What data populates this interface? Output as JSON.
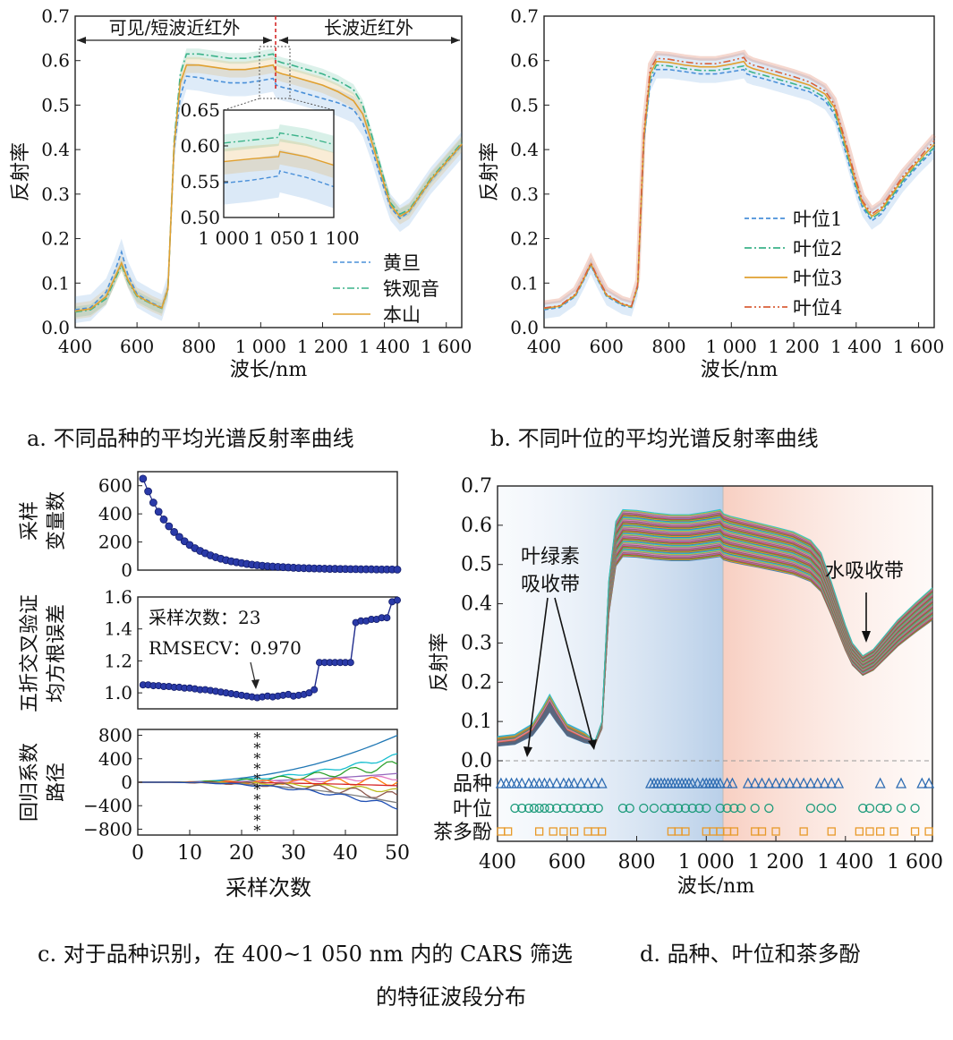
{
  "captions": {
    "a": "a. 不同品种的平均光谱反射率曲线",
    "b": "b. 不同叶位的平均光谱反射率曲线",
    "c_line1": "c. 对于品种识别，在 400~1 050 nm 内的 CARS 筛选",
    "d_line1": "d. 品种、叶位和茶多酚",
    "d_line2": "的特征波段分布"
  },
  "colors": {
    "huangdan": "#4a90d9",
    "tieguanyin": "#3cb38a",
    "benshan": "#e0a030",
    "yewei4": "#d9603a",
    "cars_points": "#1f2b8c",
    "selected_marker": "#3c4fc9"
  },
  "chart_data": [
    {
      "id": "a",
      "type": "line",
      "xlabel": "波长/nm",
      "ylabel": "反射率",
      "xlim": [
        400,
        1650
      ],
      "ylim": [
        0.0,
        0.7
      ],
      "xticks": [
        "400",
        "600",
        "800",
        "1 000",
        "1 200",
        "1 400",
        "1 600"
      ],
      "yticks": [
        "0.0",
        "0.1",
        "0.2",
        "0.3",
        "0.4",
        "0.5",
        "0.6",
        "0.7"
      ],
      "region_labels": [
        "可见/短波近红外",
        "长波近红外"
      ],
      "divider_x": 1050,
      "legend_position": "bottom-right",
      "x": [
        400,
        450,
        500,
        530,
        550,
        570,
        600,
        650,
        680,
        700,
        720,
        740,
        760,
        800,
        850,
        900,
        950,
        1000,
        1040,
        1050,
        1070,
        1100,
        1150,
        1200,
        1250,
        1300,
        1330,
        1360,
        1400,
        1420,
        1450,
        1480,
        1500,
        1550,
        1600,
        1650
      ],
      "series": [
        {
          "name": "黄旦",
          "style": "dashed",
          "color": "#4a90d9",
          "values": [
            0.04,
            0.045,
            0.08,
            0.13,
            0.17,
            0.12,
            0.075,
            0.055,
            0.045,
            0.09,
            0.4,
            0.52,
            0.565,
            0.562,
            0.555,
            0.55,
            0.55,
            0.555,
            0.56,
            0.545,
            0.54,
            0.535,
            0.525,
            0.515,
            0.505,
            0.49,
            0.46,
            0.4,
            0.31,
            0.27,
            0.245,
            0.26,
            0.28,
            0.33,
            0.37,
            0.41
          ],
          "band": 0.03
        },
        {
          "name": "铁观音",
          "style": "dashdot",
          "color": "#3cb38a",
          "values": [
            0.035,
            0.04,
            0.065,
            0.11,
            0.14,
            0.105,
            0.07,
            0.052,
            0.043,
            0.085,
            0.42,
            0.57,
            0.615,
            0.615,
            0.61,
            0.605,
            0.605,
            0.61,
            0.615,
            0.6,
            0.595,
            0.59,
            0.58,
            0.57,
            0.555,
            0.535,
            0.5,
            0.43,
            0.33,
            0.28,
            0.255,
            0.265,
            0.285,
            0.335,
            0.375,
            0.415
          ],
          "band": 0.012
        },
        {
          "name": "本山",
          "style": "solid",
          "color": "#e0a030",
          "values": [
            0.037,
            0.042,
            0.07,
            0.115,
            0.145,
            0.108,
            0.072,
            0.053,
            0.044,
            0.087,
            0.41,
            0.55,
            0.59,
            0.59,
            0.585,
            0.58,
            0.58,
            0.585,
            0.59,
            0.575,
            0.57,
            0.565,
            0.555,
            0.545,
            0.53,
            0.51,
            0.48,
            0.415,
            0.32,
            0.275,
            0.25,
            0.262,
            0.282,
            0.332,
            0.372,
            0.412
          ],
          "band": 0.018
        }
      ],
      "inset": {
        "xlim": [
          1000,
          1100
        ],
        "ylim": [
          0.5,
          0.65
        ],
        "xticks": [
          "1 000",
          "1 050",
          "1 100"
        ],
        "yticks": [
          "0.50",
          "0.55",
          "0.60",
          "0.65"
        ],
        "x": [
          1000,
          1025,
          1050,
          1051,
          1075,
          1100
        ],
        "series": [
          {
            "name": "黄旦",
            "values": [
              0.548,
              0.552,
              0.558,
              0.565,
              0.556,
              0.543
            ]
          },
          {
            "name": "铁观音",
            "values": [
              0.604,
              0.608,
              0.612,
              0.618,
              0.612,
              0.602
            ]
          },
          {
            "name": "本山",
            "values": [
              0.578,
              0.582,
              0.585,
              0.592,
              0.585,
              0.573
            ]
          }
        ]
      }
    },
    {
      "id": "b",
      "type": "line",
      "xlabel": "波长/nm",
      "ylabel": "反射率",
      "xlim": [
        400,
        1650
      ],
      "ylim": [
        0.0,
        0.7
      ],
      "xticks": [
        "400",
        "600",
        "800",
        "1 000",
        "1 200",
        "1 400",
        "1 600"
      ],
      "yticks": [
        "0.0",
        "0.1",
        "0.2",
        "0.3",
        "0.4",
        "0.5",
        "0.6",
        "0.7"
      ],
      "legend_position": "bottom-right",
      "x": [
        400,
        450,
        500,
        530,
        550,
        570,
        600,
        650,
        680,
        700,
        720,
        740,
        760,
        800,
        850,
        900,
        950,
        1000,
        1040,
        1050,
        1070,
        1100,
        1150,
        1200,
        1250,
        1300,
        1330,
        1360,
        1400,
        1420,
        1450,
        1480,
        1500,
        1550,
        1600,
        1650
      ],
      "series": [
        {
          "name": "叶位1",
          "style": "dashed",
          "color": "#4a90d9",
          "values": [
            0.04,
            0.045,
            0.07,
            0.11,
            0.14,
            0.11,
            0.07,
            0.05,
            0.045,
            0.09,
            0.42,
            0.55,
            0.58,
            0.58,
            0.575,
            0.57,
            0.57,
            0.575,
            0.58,
            0.57,
            0.565,
            0.56,
            0.55,
            0.54,
            0.53,
            0.51,
            0.48,
            0.41,
            0.31,
            0.27,
            0.24,
            0.255,
            0.275,
            0.325,
            0.365,
            0.4
          ]
        },
        {
          "name": "叶位2",
          "style": "dashdot",
          "color": "#3cb38a",
          "values": [
            0.042,
            0.047,
            0.072,
            0.112,
            0.142,
            0.112,
            0.072,
            0.052,
            0.046,
            0.092,
            0.425,
            0.56,
            0.59,
            0.588,
            0.582,
            0.578,
            0.578,
            0.583,
            0.588,
            0.578,
            0.573,
            0.568,
            0.558,
            0.548,
            0.537,
            0.517,
            0.487,
            0.417,
            0.317,
            0.275,
            0.245,
            0.26,
            0.28,
            0.33,
            0.37,
            0.405
          ]
        },
        {
          "name": "叶位3",
          "style": "solid",
          "color": "#e0a030",
          "values": [
            0.043,
            0.048,
            0.073,
            0.113,
            0.143,
            0.113,
            0.073,
            0.053,
            0.047,
            0.093,
            0.43,
            0.57,
            0.598,
            0.596,
            0.59,
            0.586,
            0.586,
            0.592,
            0.598,
            0.588,
            0.582,
            0.576,
            0.566,
            0.556,
            0.545,
            0.525,
            0.495,
            0.425,
            0.323,
            0.28,
            0.25,
            0.265,
            0.285,
            0.335,
            0.375,
            0.412
          ]
        },
        {
          "name": "叶位4",
          "style": "dashdotdot",
          "color": "#d9603a",
          "values": [
            0.044,
            0.049,
            0.075,
            0.115,
            0.145,
            0.115,
            0.075,
            0.054,
            0.048,
            0.095,
            0.44,
            0.58,
            0.605,
            0.603,
            0.597,
            0.593,
            0.593,
            0.6,
            0.607,
            0.597,
            0.59,
            0.584,
            0.574,
            0.564,
            0.552,
            0.532,
            0.502,
            0.432,
            0.33,
            0.285,
            0.255,
            0.27,
            0.29,
            0.34,
            0.38,
            0.42
          ]
        }
      ]
    },
    {
      "id": "c1",
      "type": "scatter",
      "ylabel": "采样\n变量数",
      "xlim": [
        0,
        50
      ],
      "ylim": [
        0,
        700
      ],
      "yticks": [
        "0",
        "200",
        "400",
        "600"
      ],
      "x": [
        1,
        2,
        3,
        4,
        5,
        6,
        7,
        8,
        9,
        10,
        11,
        12,
        13,
        14,
        15,
        16,
        17,
        18,
        19,
        20,
        21,
        22,
        23,
        24,
        25,
        26,
        27,
        28,
        29,
        30,
        31,
        32,
        33,
        34,
        35,
        36,
        37,
        38,
        39,
        40,
        41,
        42,
        43,
        44,
        45,
        46,
        47,
        48,
        49,
        50
      ],
      "values": [
        650,
        560,
        480,
        415,
        360,
        312,
        271,
        236,
        205,
        179,
        156,
        137,
        120,
        105,
        92,
        81,
        71,
        63,
        56,
        50,
        44,
        39,
        35,
        31,
        28,
        25,
        23,
        21,
        19,
        17,
        15,
        14,
        13,
        12,
        11,
        10,
        9,
        9,
        8,
        8,
        7,
        7,
        6,
        6,
        6,
        5,
        5,
        5,
        5,
        4
      ]
    },
    {
      "id": "c2",
      "type": "line",
      "ylabel": "五折交叉验证\n均方根误差",
      "xlim": [
        0,
        50
      ],
      "ylim": [
        0.9,
        1.6
      ],
      "yticks": [
        "1.0",
        "1.2",
        "1.4",
        "1.6"
      ],
      "annotation_label_1": "采样次数：",
      "annotation_value_1": "23",
      "annotation_label_2": "RMSECV：",
      "annotation_value_2": "0.970",
      "highlight_x": 23,
      "x": [
        1,
        2,
        3,
        4,
        5,
        6,
        7,
        8,
        9,
        10,
        11,
        12,
        13,
        14,
        15,
        16,
        17,
        18,
        19,
        20,
        21,
        22,
        23,
        24,
        25,
        26,
        27,
        28,
        29,
        30,
        31,
        32,
        33,
        34,
        35,
        36,
        37,
        38,
        39,
        40,
        41,
        42,
        43,
        44,
        45,
        46,
        47,
        48,
        49,
        50
      ],
      "values": [
        1.05,
        1.05,
        1.045,
        1.045,
        1.04,
        1.04,
        1.035,
        1.035,
        1.03,
        1.03,
        1.025,
        1.02,
        1.02,
        1.015,
        1.01,
        1.005,
        1.0,
        0.995,
        0.99,
        0.985,
        0.98,
        0.975,
        0.97,
        0.975,
        0.98,
        0.975,
        0.98,
        0.985,
        0.99,
        0.98,
        0.985,
        0.99,
        1.0,
        1.02,
        1.19,
        1.19,
        1.19,
        1.19,
        1.19,
        1.19,
        1.19,
        1.44,
        1.45,
        1.45,
        1.46,
        1.46,
        1.47,
        1.47,
        1.57,
        1.58
      ]
    },
    {
      "id": "c3",
      "type": "line",
      "xlabel": "采样次数",
      "ylabel": "回归系数\n路径",
      "xlim": [
        0,
        50
      ],
      "ylim": [
        -900,
        900
      ],
      "xticks": [
        "0",
        "10",
        "20",
        "30",
        "40",
        "50"
      ],
      "yticks": [
        "800",
        "400",
        "0",
        "−400",
        "−800"
      ],
      "highlight_x": 23,
      "series_endpoints": [
        800,
        450,
        300,
        150,
        80,
        20,
        -60,
        -150,
        -250,
        -350,
        -420
      ]
    },
    {
      "id": "d",
      "type": "line",
      "xlabel": "波长/nm",
      "ylabel": "反射率",
      "xlim": [
        400,
        1650
      ],
      "ylim": [
        0.0,
        0.7
      ],
      "xticks": [
        "400",
        "600",
        "800",
        "1 000",
        "1 200",
        "1 400",
        "1 600"
      ],
      "yticks": [
        "0.0",
        "0.1",
        "0.2",
        "0.3",
        "0.4",
        "0.5",
        "0.6",
        "0.7"
      ],
      "annotations": [
        "叶绿素\n吸收带",
        "水吸收带"
      ],
      "band_rows": [
        "品种",
        "叶位",
        "茶多酚"
      ],
      "band_markers": {
        "品种": [
          410,
          425,
          440,
          455,
          470,
          490,
          505,
          520,
          535,
          550,
          570,
          590,
          605,
          620,
          640,
          660,
          680,
          700,
          840,
          850,
          860,
          870,
          880,
          890,
          900,
          910,
          920,
          930,
          940,
          950,
          960,
          975,
          990,
          1000,
          1010,
          1020,
          1030,
          1040,
          1060,
          1075,
          1120,
          1140,
          1160,
          1180,
          1200,
          1220,
          1240,
          1260,
          1280,
          1300,
          1320,
          1340,
          1360,
          1380,
          1500,
          1560,
          1620,
          1640
        ],
        "叶位": [
          450,
          470,
          490,
          505,
          520,
          535,
          550,
          570,
          590,
          610,
          630,
          650,
          670,
          690,
          760,
          780,
          820,
          850,
          880,
          900,
          920,
          940,
          960,
          980,
          1000,
          1040,
          1060,
          1080,
          1100,
          1140,
          1180,
          1300,
          1330,
          1360,
          1450,
          1470,
          1500,
          1520,
          1560,
          1600
        ],
        "茶多酚": [
          410,
          430,
          520,
          560,
          590,
          620,
          660,
          680,
          700,
          900,
          920,
          940,
          1000,
          1020,
          1040,
          1060,
          1080,
          1140,
          1160,
          1200,
          1280,
          1360,
          1440,
          1470,
          1500,
          1540,
          1600,
          1640
        ]
      }
    }
  ]
}
